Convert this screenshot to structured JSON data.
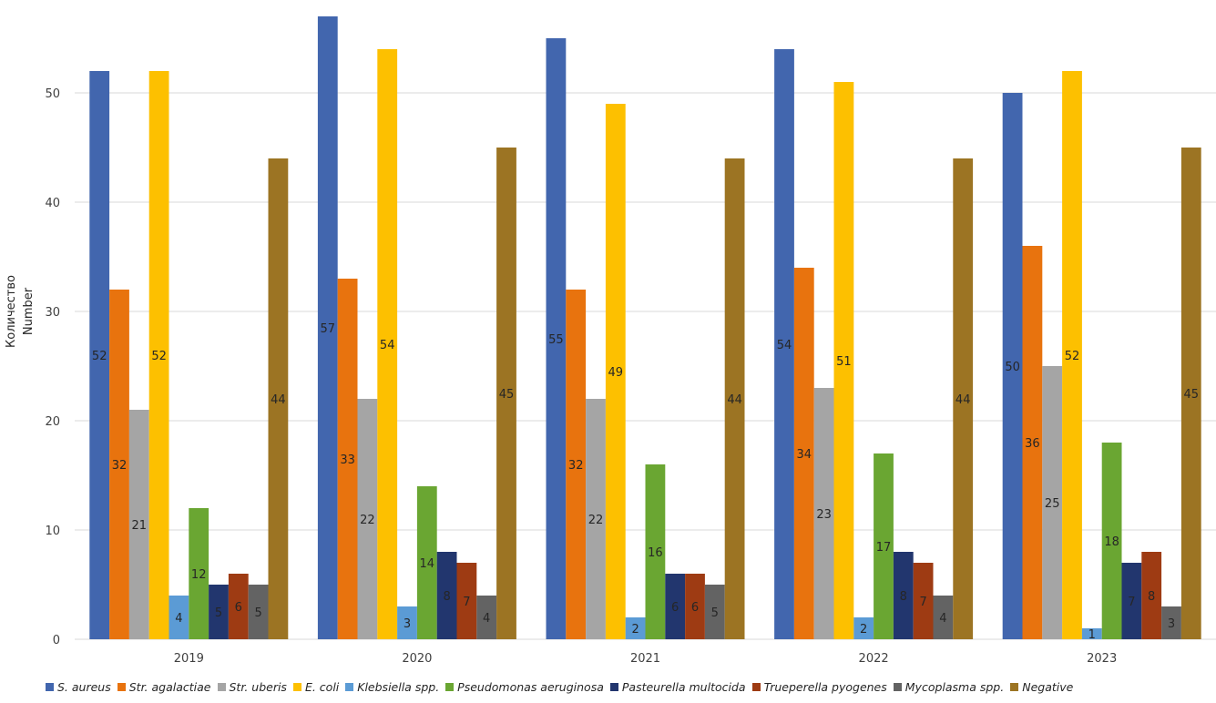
{
  "chart_data": {
    "type": "bar",
    "title": "",
    "xlabel": "",
    "ylabel": [
      "Количество",
      "Number"
    ],
    "ylim": [
      0,
      57
    ],
    "yticks": [
      0,
      10,
      20,
      30,
      40,
      50
    ],
    "grid": true,
    "legend_position": "bottom",
    "categories": [
      "2019",
      "2020",
      "2021",
      "2022",
      "2023"
    ],
    "series": [
      {
        "name": "S. aureus",
        "color": "#4266AE",
        "values": [
          52,
          57,
          55,
          54,
          50
        ]
      },
      {
        "name": "Str. agalactiae",
        "color": "#E8730E",
        "values": [
          32,
          33,
          32,
          34,
          36
        ]
      },
      {
        "name": "Str. uberis",
        "color": "#A5A5A5",
        "values": [
          21,
          22,
          22,
          23,
          25
        ]
      },
      {
        "name": "E. coli",
        "color": "#FDC000",
        "values": [
          52,
          54,
          49,
          51,
          52
        ]
      },
      {
        "name": "Klebsiella spp.",
        "color": "#5B9BD5",
        "values": [
          4,
          3,
          2,
          2,
          1
        ]
      },
      {
        "name": "Pseudomonas aeruginosa",
        "color": "#6AA632",
        "values": [
          12,
          14,
          16,
          17,
          18
        ]
      },
      {
        "name": "Pasteurella multocida",
        "color": "#22366E",
        "values": [
          5,
          8,
          6,
          8,
          7
        ]
      },
      {
        "name": "Trueperella pyogenes",
        "color": "#9E3B13",
        "values": [
          6,
          7,
          6,
          7,
          8
        ]
      },
      {
        "name": "Mycoplasma spp.",
        "color": "#636363",
        "values": [
          5,
          4,
          5,
          4,
          3
        ]
      },
      {
        "name": "Negative",
        "color": "#9C7423",
        "values": [
          44,
          45,
          44,
          44,
          45
        ]
      }
    ]
  }
}
